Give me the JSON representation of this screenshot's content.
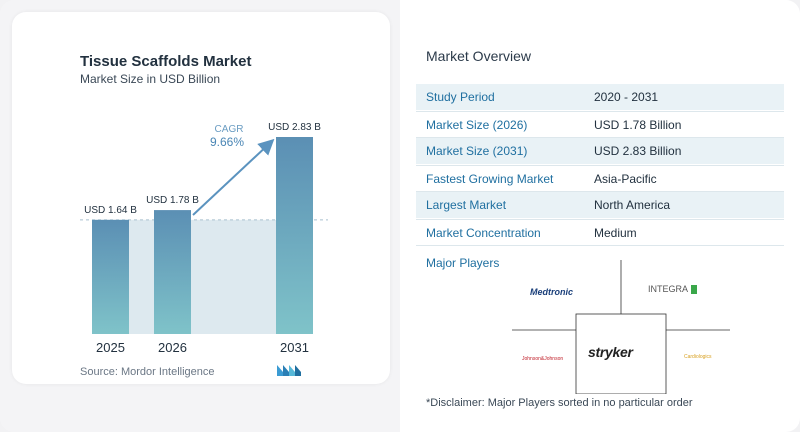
{
  "chart_data": {
    "type": "bar",
    "title": "Tissue Scaffolds Market",
    "subtitle": "Market Size in USD Billion",
    "categories": [
      "2025",
      "2026",
      "2031"
    ],
    "values": [
      1.64,
      1.78,
      2.83
    ],
    "data_labels": [
      "USD 1.64 B",
      "USD 1.78 B",
      "USD 2.83 B"
    ],
    "cagr_label": "CAGR",
    "cagr_value": "9.66%",
    "colors": {
      "bar_top": "#5b8fb4",
      "bar_bottom": "#7fc3c9",
      "shade": "#dde9ef",
      "arrow": "#5b93bf"
    }
  },
  "source": "Source:  Mordor Intelligence",
  "overview": {
    "title": "Market Overview",
    "rows": [
      {
        "key": "Study Period",
        "value": "2020 - 2031"
      },
      {
        "key": "Market Size (2026)",
        "value": "USD 1.78 Billion"
      },
      {
        "key": "Market Size (2031)",
        "value": "USD 2.83 Billion"
      },
      {
        "key": "Fastest Growing Market",
        "value": "Asia-Pacific"
      },
      {
        "key": "Largest Market",
        "value": "North America"
      },
      {
        "key": "Market Concentration",
        "value": "Medium"
      }
    ]
  },
  "players": {
    "title": "Major Players",
    "logos": [
      "Medtronic",
      "INTEGRA",
      "Johnson&Johnson",
      "stryker",
      "Cardiologics"
    ]
  },
  "disclaimer": "*Disclaimer: Major Players sorted in no particular order"
}
